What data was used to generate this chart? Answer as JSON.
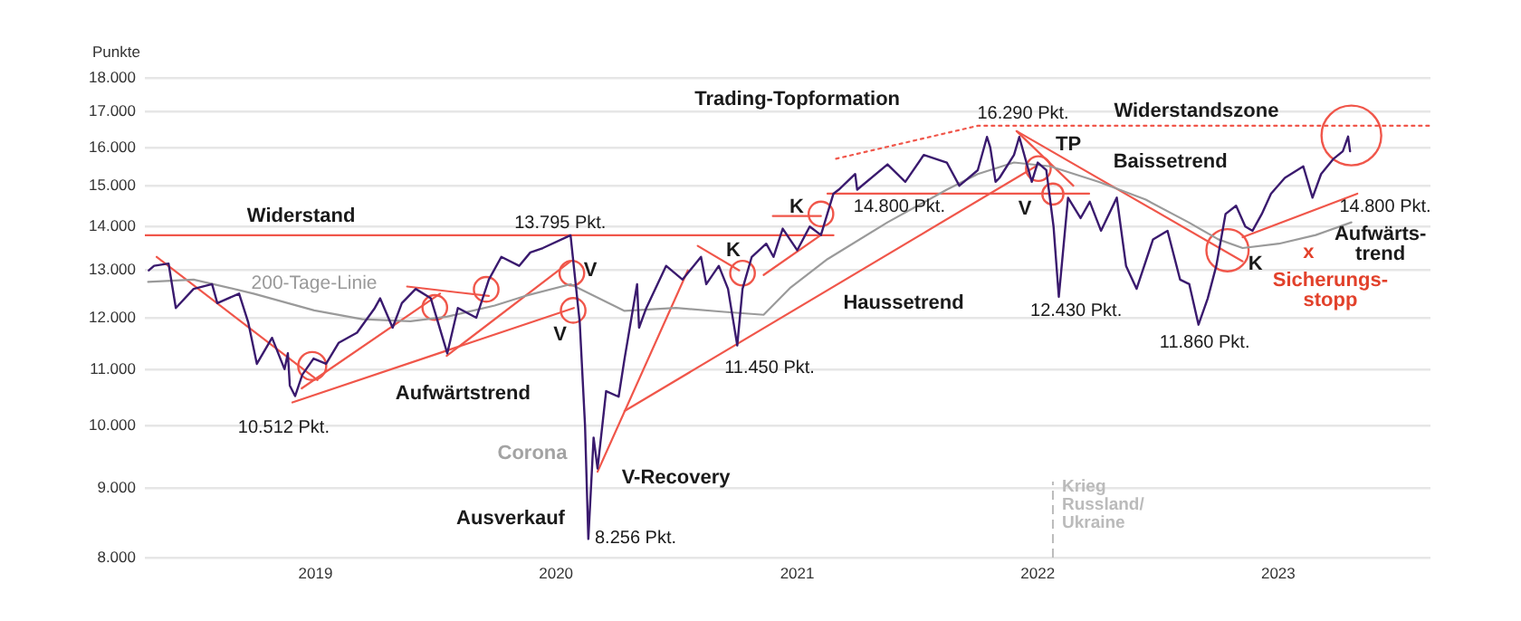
{
  "chart_data": {
    "type": "line",
    "ylabel": "Punkte",
    "log": "y",
    "grid": "y",
    "line_style": "solid",
    "xlim": [
      "2018-04-17",
      "2023-08-20"
    ],
    "xticks": [
      "2019",
      "2020",
      "2021",
      "2022",
      "2023"
    ],
    "ylim": [
      8000,
      18000
    ],
    "yticks": [
      {
        "value": 8000,
        "label": "8.000"
      },
      {
        "value": 9000,
        "label": "9.000"
      },
      {
        "value": 10000,
        "label": "10.000"
      },
      {
        "value": 11000,
        "label": "11.000"
      },
      {
        "value": 12000,
        "label": "12.000"
      },
      {
        "value": 13000,
        "label": "13.000"
      },
      {
        "value": 14000,
        "label": "14.000"
      },
      {
        "value": 15000,
        "label": "15.000"
      },
      {
        "value": 16000,
        "label": "16.000"
      },
      {
        "value": 17000,
        "label": "17.000"
      },
      {
        "value": 18000,
        "label": "18.000"
      }
    ],
    "series": [
      {
        "color": "#3a1a6e",
        "x": [
          "2018-04-23",
          "2018-05-01",
          "2018-05-23",
          "2018-06-03",
          "2018-06-30",
          "2018-07-28",
          "2018-08-05",
          "2018-09-07",
          "2018-09-21",
          "2018-10-04",
          "2018-10-27",
          "2018-11-15",
          "2018-11-20",
          "2018-11-23",
          "2018-12-01",
          "2018-12-12",
          "2018-12-29",
          "2019-01-17",
          "2019-02-05",
          "2019-03-05",
          "2019-04-01",
          "2019-04-09",
          "2019-04-28",
          "2019-05-12",
          "2019-06-02",
          "2019-06-25",
          "2019-07-20",
          "2019-08-05",
          "2019-09-02",
          "2019-09-21",
          "2019-10-10",
          "2019-11-06",
          "2019-11-23",
          "2019-12-12",
          "2020-01-23",
          "2020-02-06",
          "2020-02-14",
          "2020-02-19",
          "2020-02-27",
          "2020-03-04",
          "2020-03-17",
          "2020-04-05",
          "2020-04-14",
          "2020-05-03",
          "2020-05-06",
          "2020-05-17",
          "2020-06-16",
          "2020-07-11",
          "2020-08-08",
          "2020-08-16",
          "2020-09-04",
          "2020-09-18",
          "2020-10-02",
          "2020-10-10",
          "2020-10-24",
          "2020-11-15",
          "2020-11-26",
          "2020-12-10",
          "2021-01-01",
          "2021-01-20",
          "2021-02-06",
          "2021-02-25",
          "2021-03-05",
          "2021-03-30",
          "2021-04-02",
          "2021-05-18",
          "2021-06-14",
          "2021-07-12",
          "2021-08-16",
          "2021-09-04",
          "2021-10-02",
          "2021-10-16",
          "2021-10-21",
          "2021-10-29",
          "2021-11-04",
          "2021-11-26",
          "2021-12-04",
          "2021-12-23",
          "2022-01-01",
          "2022-01-14",
          "2022-01-25",
          "2022-02-02",
          "2022-02-16",
          "2022-03-07",
          "2022-03-21",
          "2022-04-07",
          "2022-05-01",
          "2022-05-15",
          "2022-05-31",
          "2022-06-25",
          "2022-07-17",
          "2022-08-05",
          "2022-08-19",
          "2022-09-02",
          "2022-09-16",
          "2022-09-29",
          "2022-10-13",
          "2022-10-29",
          "2022-11-12",
          "2022-11-23",
          "2022-12-07",
          "2022-12-21",
          "2023-01-11",
          "2023-02-08",
          "2023-02-22",
          "2023-03-07",
          "2023-03-26",
          "2023-04-09",
          "2023-04-17",
          "2023-04-20"
        ],
        "values": [
          13000,
          13100,
          13150,
          12200,
          12600,
          12700,
          12300,
          12500,
          11900,
          11100,
          11600,
          11000,
          11300,
          10700,
          10512,
          10900,
          11200,
          11100,
          11500,
          11700,
          12200,
          12400,
          11800,
          12300,
          12600,
          12400,
          11300,
          12200,
          12000,
          12800,
          13300,
          13100,
          13400,
          13500,
          13795,
          11900,
          10000,
          8256,
          9800,
          9300,
          10600,
          10500,
          11200,
          12700,
          11800,
          12200,
          13100,
          12800,
          13300,
          12700,
          13100,
          12600,
          11450,
          12600,
          13300,
          13600,
          13300,
          13950,
          13450,
          14000,
          13800,
          14800,
          14900,
          15300,
          14900,
          15550,
          15100,
          15800,
          15600,
          15000,
          15400,
          16290,
          16000,
          15100,
          15200,
          15800,
          16290,
          15100,
          15600,
          15400,
          14000,
          12430,
          14700,
          14200,
          14600,
          13900,
          14700,
          13100,
          12600,
          13700,
          13900,
          12800,
          12700,
          11860,
          12400,
          13100,
          14300,
          14500,
          14000,
          13900,
          14300,
          14800,
          15200,
          15500,
          14700,
          15300,
          15700,
          15900,
          16300,
          15900
        ]
      },
      {
        "name": "200-Tage-Linie",
        "color": "#9a9a9a",
        "x": [
          "2018-04-22",
          "2018-06-30",
          "2018-09-29",
          "2018-12-30",
          "2019-03-13",
          "2019-05-25",
          "2019-07-19",
          "2019-09-30",
          "2019-11-15",
          "2020-01-23",
          "2020-04-14",
          "2020-07-01",
          "2020-09-12",
          "2020-11-11",
          "2020-12-22",
          "2021-02-16",
          "2021-05-18",
          "2021-08-16",
          "2021-10-02",
          "2021-11-26",
          "2022-01-20",
          "2022-04-03",
          "2022-06-14",
          "2022-08-18",
          "2022-10-02",
          "2022-11-08",
          "2023-01-02",
          "2023-02-27",
          "2023-04-22"
        ],
        "values": [
          12750,
          12800,
          12500,
          12150,
          11970,
          11930,
          12020,
          12250,
          12450,
          12700,
          12140,
          12200,
          12120,
          12060,
          12630,
          13250,
          14100,
          14900,
          15300,
          15600,
          15500,
          15100,
          14650,
          14100,
          13700,
          13500,
          13600,
          13800,
          14100
        ]
      },
      {
        "color": "#f0564a",
        "x": [
          "2018-05-05",
          "2019-01-04"
        ],
        "values": [
          13300,
          10800
        ]
      },
      {
        "color": "#f0564a",
        "x": [
          "2018-12-11",
          "2019-07-09"
        ],
        "values": [
          10650,
          12500
        ]
      },
      {
        "color": "#f0564a",
        "x": [
          "2018-11-27",
          "2020-01-28"
        ],
        "values": [
          10400,
          12200
        ]
      },
      {
        "color": "#f0564a",
        "x": [
          "2019-05-20",
          "2019-09-21"
        ],
        "values": [
          12650,
          12450
        ]
      },
      {
        "color": "#f0564a",
        "x": [
          "2019-07-19",
          "2020-01-23"
        ],
        "values": [
          11250,
          13200
        ]
      },
      {
        "color": "#f0564a",
        "x": [
          "2018-04-17",
          "2021-02-25"
        ],
        "values": [
          13795,
          13795
        ]
      },
      {
        "color": "#f0564a",
        "x": [
          "2020-03-04",
          "2020-07-19"
        ],
        "values": [
          9250,
          13000
        ]
      },
      {
        "color": "#f0564a",
        "x": [
          "2020-04-14",
          "2021-12-29"
        ],
        "values": [
          10250,
          15500
        ]
      },
      {
        "color": "#f0564a",
        "x": [
          "2020-08-03",
          "2020-10-05"
        ],
        "values": [
          13550,
          13000
        ]
      },
      {
        "color": "#f0564a",
        "x": [
          "2020-11-11",
          "2021-02-06"
        ],
        "values": [
          12900,
          13800
        ]
      },
      {
        "color": "#f0564a",
        "x": [
          "2020-11-25",
          "2021-02-06"
        ],
        "values": [
          14250,
          14250
        ]
      },
      {
        "color": "#f0564a",
        "x": [
          "2021-02-16",
          "2022-03-20"
        ],
        "values": [
          14800,
          14800
        ]
      },
      {
        "color": "#f0564a",
        "line_style": "dotted",
        "x": [
          "2021-03-01",
          "2021-10-02",
          "2023-08-20"
        ],
        "values": [
          15700,
          16600,
          16600
        ]
      },
      {
        "color": "#f0564a",
        "x": [
          "2021-11-30",
          "2022-02-24"
        ],
        "values": [
          16450,
          15000
        ]
      },
      {
        "color": "#f0564a",
        "x": [
          "2021-11-30",
          "2022-11-08"
        ],
        "values": [
          16450,
          13200
        ]
      },
      {
        "type": "bubble",
        "color": "#f0564a",
        "x": [
          "2018-12-27",
          "2019-07-01",
          "2019-09-17",
          "2020-01-25",
          "2020-01-27",
          "2020-10-10",
          "2021-02-06",
          "2022-01-02",
          "2022-01-24",
          "2022-10-16",
          "2023-04-22"
        ],
        "values": [
          11060,
          12210,
          12590,
          12940,
          12150,
          12940,
          14300,
          15440,
          14790,
          13450,
          16330
        ],
        "sizes": [
          0.22,
          0.17,
          0.17,
          0.17,
          0.17,
          0.17,
          0.17,
          0.17,
          0.125,
          0.5,
          1
        ]
      },
      {
        "color": "#f0564a",
        "x": [
          "2022-11-08",
          "2023-05-01"
        ],
        "values": [
          13750,
          14800
        ]
      }
    ],
    "ref_lines": [
      {
        "axis": "x",
        "value": "2022-01-24",
        "label": "Krieg\nRussland/\nUkraine",
        "color": "#bbbbbb",
        "line_style": "dashed"
      }
    ],
    "annotations": [
      "Widerstand",
      "13.795 Pkt.",
      "10.512 Pkt.",
      "Aufwärtstrend",
      "Corona",
      "Ausverkauf",
      "8.256 Pkt.",
      "V-Recovery",
      "V",
      "V",
      "K",
      "K",
      "Trading-Topformation",
      "14.800 Pkt.",
      "11.450 Pkt.",
      "Haussetrend",
      "16.290 Pkt.",
      "TP",
      "V",
      "Widerstandszone",
      "Baissetrend",
      "12.430 Pkt.",
      "11.860 Pkt.",
      "K",
      "14.800 Pkt.",
      "Aufwärts-\ntrend",
      "Sicherungs-\nstopp",
      "x"
    ]
  }
}
